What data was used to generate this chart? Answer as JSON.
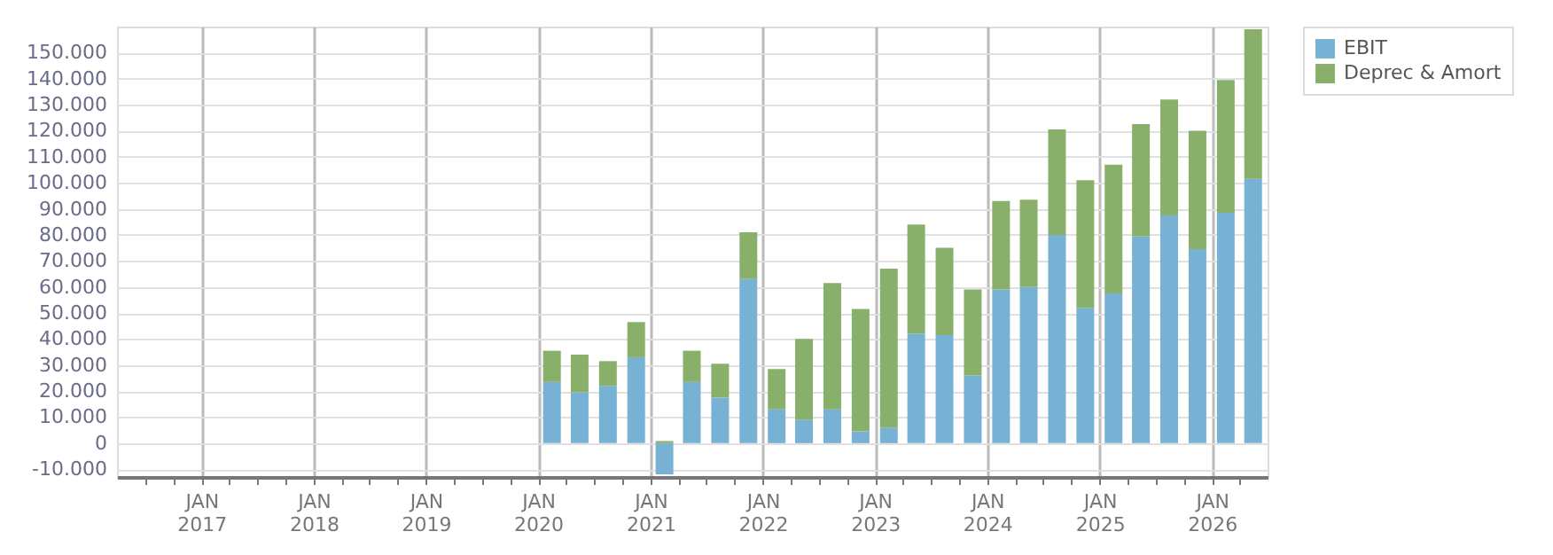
{
  "chart_data": {
    "type": "bar",
    "stacked": true,
    "x": [
      "2020-02-15",
      "2020-05-15",
      "2020-08-15",
      "2020-11-15",
      "2021-02-15",
      "2021-05-15",
      "2021-08-15",
      "2021-11-15",
      "2022-02-15",
      "2022-05-15",
      "2022-08-15",
      "2022-11-15",
      "2023-02-15",
      "2023-05-15",
      "2023-08-15",
      "2023-11-15",
      "2024-02-15",
      "2024-05-15",
      "2024-08-15",
      "2024-11-15",
      "2025-02-15",
      "2025-05-15",
      "2025-08-15",
      "2025-11-15",
      "2026-02-15",
      "2026-05-15"
    ],
    "series": [
      {
        "name": "EBIT",
        "color": "#77b1d3",
        "values": [
          23500,
          19500,
          22000,
          33000,
          -12000,
          23500,
          17500,
          63000,
          13000,
          9000,
          13000,
          4500,
          6000,
          42000,
          41500,
          26000,
          59000,
          60000,
          80000,
          52000,
          57500,
          79500,
          87500,
          74500,
          88500,
          101500
        ]
      },
      {
        "name": "Deprec & Amort",
        "color": "#88b06a",
        "values": [
          12000,
          14500,
          9500,
          13500,
          800,
          12000,
          13000,
          18000,
          15500,
          31000,
          48500,
          47000,
          61000,
          42000,
          33500,
          33000,
          34000,
          33500,
          40500,
          49000,
          49500,
          43000,
          44500,
          45500,
          51000,
          57500
        ]
      }
    ],
    "xlim": [
      "2016-04-01",
      "2026-07-01"
    ],
    "xticks": [
      {
        "value": "2016-07-01",
        "label": null
      },
      {
        "value": "2016-10-01",
        "label": null
      },
      {
        "value": "2017-01-01",
        "label": "JAN 2017"
      },
      {
        "value": "2017-04-01",
        "label": null
      },
      {
        "value": "2017-07-01",
        "label": null
      },
      {
        "value": "2017-10-01",
        "label": null
      },
      {
        "value": "2018-01-01",
        "label": "JAN 2018"
      },
      {
        "value": "2018-04-01",
        "label": null
      },
      {
        "value": "2018-07-01",
        "label": null
      },
      {
        "value": "2018-10-01",
        "label": null
      },
      {
        "value": "2019-01-01",
        "label": "JAN 2019"
      },
      {
        "value": "2019-04-01",
        "label": null
      },
      {
        "value": "2019-07-01",
        "label": null
      },
      {
        "value": "2019-10-01",
        "label": null
      },
      {
        "value": "2020-01-01",
        "label": "JAN 2020"
      },
      {
        "value": "2020-04-01",
        "label": null
      },
      {
        "value": "2020-07-01",
        "label": null
      },
      {
        "value": "2020-10-01",
        "label": null
      },
      {
        "value": "2021-01-01",
        "label": "JAN 2021"
      },
      {
        "value": "2021-04-01",
        "label": null
      },
      {
        "value": "2021-07-01",
        "label": null
      },
      {
        "value": "2021-10-01",
        "label": null
      },
      {
        "value": "2022-01-01",
        "label": "JAN 2022"
      },
      {
        "value": "2022-04-01",
        "label": null
      },
      {
        "value": "2022-07-01",
        "label": null
      },
      {
        "value": "2022-10-01",
        "label": null
      },
      {
        "value": "2023-01-01",
        "label": "JAN 2023"
      },
      {
        "value": "2023-04-01",
        "label": null
      },
      {
        "value": "2023-07-01",
        "label": null
      },
      {
        "value": "2023-10-01",
        "label": null
      },
      {
        "value": "2024-01-01",
        "label": "JAN 2024"
      },
      {
        "value": "2024-04-01",
        "label": null
      },
      {
        "value": "2024-07-01",
        "label": null
      },
      {
        "value": "2024-10-01",
        "label": null
      },
      {
        "value": "2025-01-01",
        "label": "JAN 2025"
      },
      {
        "value": "2025-04-01",
        "label": null
      },
      {
        "value": "2025-07-01",
        "label": null
      },
      {
        "value": "2025-10-01",
        "label": null
      },
      {
        "value": "2026-01-01",
        "label": "JAN 2026"
      },
      {
        "value": "2026-04-01",
        "label": null
      }
    ],
    "ylim": [
      -13000,
      160000
    ],
    "yticks": [
      {
        "value": -10000,
        "label": "-10.000"
      },
      {
        "value": 0,
        "label": "0"
      },
      {
        "value": 10000,
        "label": "10.000"
      },
      {
        "value": 20000,
        "label": "20.000"
      },
      {
        "value": 30000,
        "label": "30.000"
      },
      {
        "value": 40000,
        "label": "40.000"
      },
      {
        "value": 50000,
        "label": "50.000"
      },
      {
        "value": 60000,
        "label": "60.000"
      },
      {
        "value": 70000,
        "label": "70.000"
      },
      {
        "value": 80000,
        "label": "80.000"
      },
      {
        "value": 90000,
        "label": "90.000"
      },
      {
        "value": 100000,
        "label": "100.000"
      },
      {
        "value": 110000,
        "label": "110.000"
      },
      {
        "value": 120000,
        "label": "120.000"
      },
      {
        "value": 130000,
        "label": "130.000"
      },
      {
        "value": 140000,
        "label": "140.000"
      },
      {
        "value": 150000,
        "label": "150.000"
      }
    ],
    "grid": true,
    "legend": "top right"
  }
}
